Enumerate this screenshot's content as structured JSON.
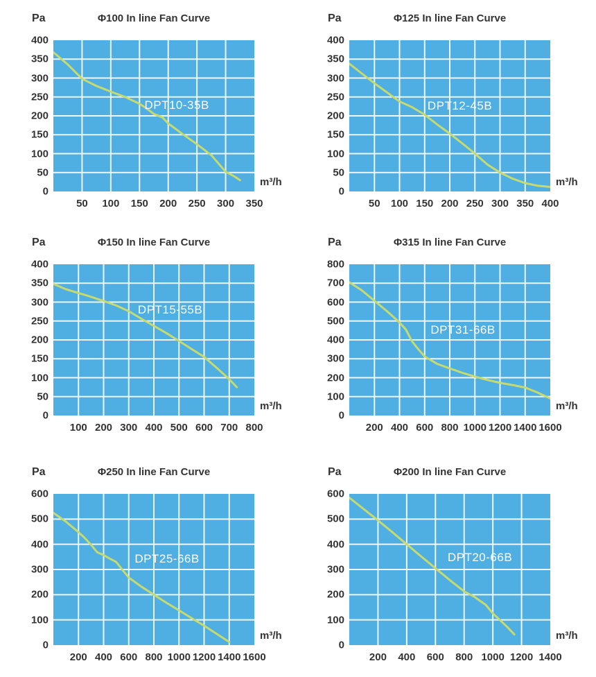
{
  "style": {
    "page_background": "#ffffff",
    "plot_background": "#4FAEE2",
    "grid_color": "#EDF7FC",
    "curve_color": "#C7DA6E",
    "text_color": "#333333",
    "series_label_color": "#ffffff"
  },
  "chart_data": [
    {
      "type": "line",
      "title": "Φ100 In line Fan Curve",
      "ylabel": "Pa",
      "xlabel": "m³/h",
      "xlim": [
        0,
        350
      ],
      "ylim": [
        0,
        400
      ],
      "x_ticks": [
        50,
        100,
        150,
        200,
        250,
        300,
        350
      ],
      "y_ticks": [
        0,
        50,
        100,
        150,
        200,
        250,
        300,
        350,
        400
      ],
      "grid": true,
      "legend_position": "inside-plot",
      "series": [
        {
          "name": "DPT10-35B",
          "label_anchor": [
            215,
            228
          ],
          "points": [
            [
              0,
              368
            ],
            [
              25,
              336
            ],
            [
              50,
              298
            ],
            [
              75,
              279
            ],
            [
              100,
              264
            ],
            [
              125,
              250
            ],
            [
              150,
              232
            ],
            [
              160,
              222
            ],
            [
              175,
              205
            ],
            [
              190,
              196
            ],
            [
              200,
              180
            ],
            [
              225,
              152
            ],
            [
              250,
              125
            ],
            [
              275,
              96
            ],
            [
              300,
              52
            ],
            [
              315,
              40
            ],
            [
              325,
              30
            ]
          ]
        }
      ]
    },
    {
      "type": "line",
      "title": "Φ125 In line Fan Curve",
      "ylabel": "Pa",
      "xlabel": "m³/h",
      "xlim": [
        0,
        400
      ],
      "ylim": [
        0,
        400
      ],
      "x_ticks": [
        50,
        100,
        150,
        200,
        250,
        300,
        350,
        400
      ],
      "y_ticks": [
        0,
        50,
        100,
        150,
        200,
        250,
        300,
        350,
        400
      ],
      "grid": true,
      "legend_position": "inside-plot",
      "series": [
        {
          "name": "DPT12-45B",
          "label_anchor": [
            220,
            225
          ],
          "points": [
            [
              0,
              338
            ],
            [
              25,
              312
            ],
            [
              50,
              286
            ],
            [
              75,
              262
            ],
            [
              100,
              238
            ],
            [
              125,
              223
            ],
            [
              150,
              203
            ],
            [
              175,
              177
            ],
            [
              200,
              153
            ],
            [
              225,
              127
            ],
            [
              250,
              100
            ],
            [
              275,
              71
            ],
            [
              300,
              50
            ],
            [
              325,
              34
            ],
            [
              350,
              22
            ],
            [
              375,
              15
            ],
            [
              400,
              12
            ]
          ]
        }
      ]
    },
    {
      "type": "line",
      "title": "Φ150 In line Fan Curve",
      "ylabel": "Pa",
      "xlabel": "m³/h",
      "xlim": [
        0,
        800
      ],
      "ylim": [
        0,
        400
      ],
      "x_ticks": [
        100,
        200,
        300,
        400,
        500,
        600,
        700,
        800
      ],
      "y_ticks": [
        0,
        50,
        100,
        150,
        200,
        250,
        300,
        350,
        400
      ],
      "grid": true,
      "legend_position": "inside-plot",
      "series": [
        {
          "name": "DPT15-55B",
          "label_anchor": [
            465,
            278
          ],
          "points": [
            [
              0,
              348
            ],
            [
              50,
              334
            ],
            [
              100,
              324
            ],
            [
              150,
              314
            ],
            [
              200,
              303
            ],
            [
              250,
              291
            ],
            [
              300,
              276
            ],
            [
              350,
              256
            ],
            [
              400,
              237
            ],
            [
              450,
              218
            ],
            [
              500,
              197
            ],
            [
              550,
              176
            ],
            [
              600,
              155
            ],
            [
              650,
              126
            ],
            [
              700,
              96
            ],
            [
              730,
              75
            ]
          ]
        }
      ]
    },
    {
      "type": "line",
      "title": "Φ315 In line Fan Curve",
      "ylabel": "Pa",
      "xlabel": "m³/h",
      "xlim": [
        0,
        1600
      ],
      "ylim": [
        0,
        800
      ],
      "x_ticks": [
        200,
        400,
        600,
        800,
        1000,
        1200,
        1400,
        1600
      ],
      "y_ticks": [
        0,
        100,
        200,
        300,
        400,
        500,
        600,
        700,
        800
      ],
      "grid": true,
      "legend_position": "inside-plot",
      "series": [
        {
          "name": "DPT31-66B",
          "label_anchor": [
            905,
            452
          ],
          "points": [
            [
              0,
              705
            ],
            [
              100,
              662
            ],
            [
              200,
              607
            ],
            [
              300,
              552
            ],
            [
              400,
              492
            ],
            [
              450,
              455
            ],
            [
              500,
              392
            ],
            [
              550,
              350
            ],
            [
              600,
              312
            ],
            [
              700,
              273
            ],
            [
              800,
              249
            ],
            [
              900,
              226
            ],
            [
              1000,
              206
            ],
            [
              1100,
              188
            ],
            [
              1200,
              173
            ],
            [
              1300,
              161
            ],
            [
              1400,
              148
            ],
            [
              1500,
              121
            ],
            [
              1600,
              90
            ]
          ]
        }
      ]
    },
    {
      "type": "line",
      "title": "Φ250 In line Fan Curve",
      "ylabel": "Pa",
      "xlabel": "m³/h",
      "xlim": [
        0,
        1600
      ],
      "ylim": [
        0,
        600
      ],
      "x_ticks": [
        200,
        400,
        600,
        800,
        1000,
        1200,
        1400,
        1600
      ],
      "y_ticks": [
        0,
        100,
        200,
        300,
        400,
        500,
        600
      ],
      "grid": true,
      "legend_position": "inside-plot",
      "series": [
        {
          "name": "DPT25-66B",
          "label_anchor": [
            905,
            340
          ],
          "points": [
            [
              0,
              525
            ],
            [
              100,
              490
            ],
            [
              200,
              448
            ],
            [
              250,
              425
            ],
            [
              300,
              398
            ],
            [
              350,
              368
            ],
            [
              400,
              357
            ],
            [
              450,
              343
            ],
            [
              500,
              330
            ],
            [
              550,
              298
            ],
            [
              600,
              268
            ],
            [
              700,
              232
            ],
            [
              800,
              200
            ],
            [
              900,
              168
            ],
            [
              1000,
              138
            ],
            [
              1100,
              107
            ],
            [
              1200,
              77
            ],
            [
              1300,
              45
            ],
            [
              1400,
              12
            ]
          ]
        }
      ]
    },
    {
      "type": "line",
      "title": "Φ200 In line Fan Curve",
      "ylabel": "Pa",
      "xlabel": "m³/h",
      "xlim": [
        0,
        1400
      ],
      "ylim": [
        0,
        600
      ],
      "x_ticks": [
        200,
        400,
        600,
        800,
        1000,
        1200,
        1400
      ],
      "y_ticks": [
        0,
        100,
        200,
        300,
        400,
        500,
        600
      ],
      "grid": true,
      "legend_position": "inside-plot",
      "series": [
        {
          "name": "DPT20-66B",
          "label_anchor": [
            910,
            347
          ],
          "points": [
            [
              0,
              585
            ],
            [
              100,
              540
            ],
            [
              200,
              495
            ],
            [
              300,
              448
            ],
            [
              400,
              400
            ],
            [
              500,
              352
            ],
            [
              600,
              305
            ],
            [
              700,
              258
            ],
            [
              800,
              213
            ],
            [
              870,
              192
            ],
            [
              900,
              180
            ],
            [
              950,
              160
            ],
            [
              1000,
              126
            ],
            [
              1100,
              72
            ],
            [
              1150,
              42
            ]
          ]
        }
      ]
    }
  ]
}
